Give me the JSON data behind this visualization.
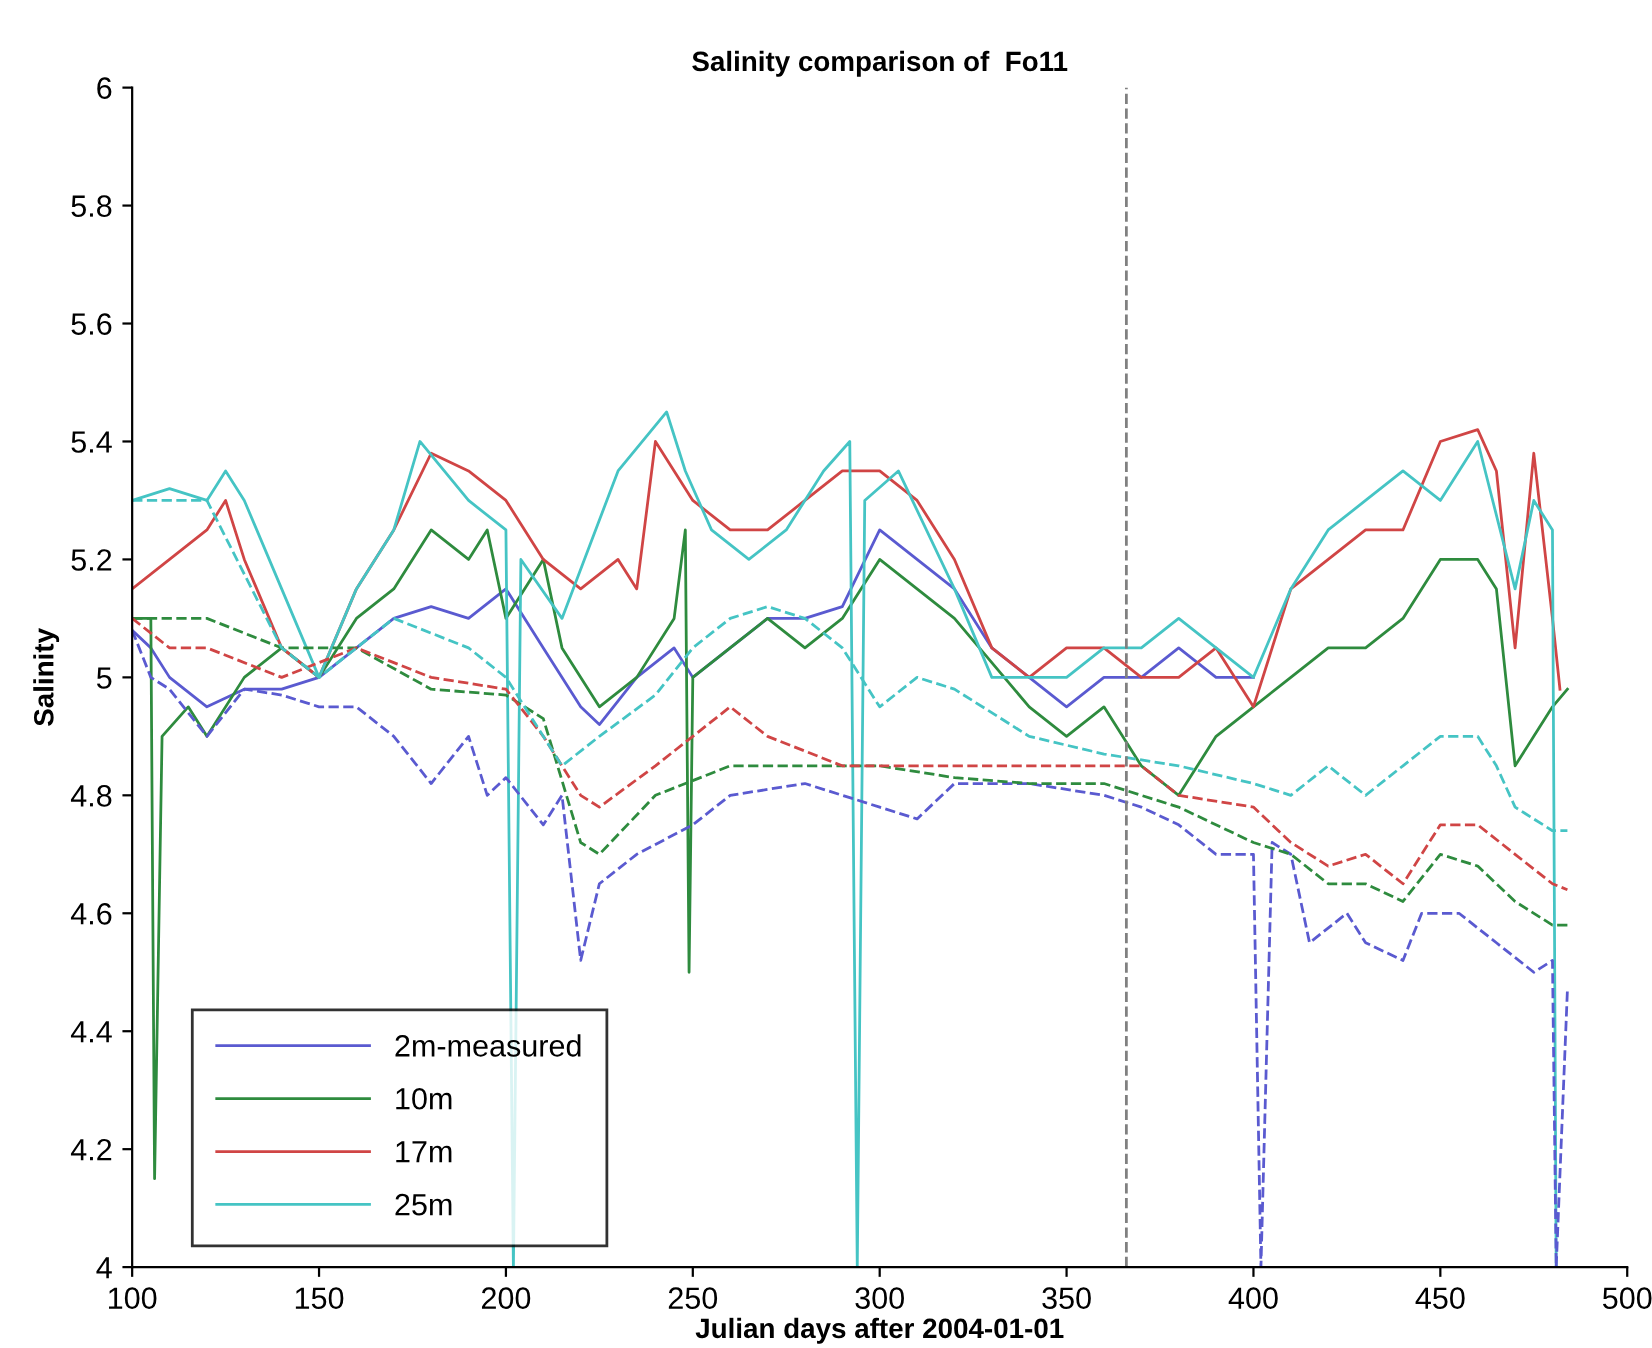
{
  "chart_data": {
    "type": "line",
    "title": "Salinity comparison of  Fo11",
    "xlabel": "Julian days after 2004-01-01",
    "ylabel": "Salinity",
    "xlim": [
      100,
      500
    ],
    "xticks": [
      100,
      150,
      200,
      250,
      300,
      350,
      400,
      450,
      500
    ],
    "ylim": [
      4,
      6
    ],
    "yticks": [
      4,
      4.2,
      4.4,
      4.6,
      4.8,
      5,
      5.2,
      5.4,
      5.6,
      5.8,
      6
    ],
    "grid": false,
    "legend": "bottom left",
    "marker": "none",
    "ref_lines": [
      {
        "axis": "x",
        "value": 366,
        "color": "#808080",
        "line_style": "dashed"
      }
    ],
    "series": [
      {
        "name": "2m-measured",
        "color": "#5a5ad0",
        "line_style": "solid",
        "x": [
          100,
          105,
          110,
          120,
          130,
          140,
          150,
          160,
          170,
          180,
          190,
          200,
          210,
          220,
          225,
          235,
          245,
          250,
          260,
          270,
          280,
          290,
          300,
          310,
          320,
          330,
          340,
          350,
          360,
          370,
          380,
          390,
          400
        ],
        "values": [
          5.08,
          5.05,
          5.0,
          4.95,
          4.98,
          4.98,
          5.0,
          5.05,
          5.1,
          5.12,
          5.1,
          5.15,
          5.05,
          4.95,
          4.92,
          5.0,
          5.05,
          5.0,
          5.05,
          5.1,
          5.1,
          5.12,
          5.25,
          5.2,
          5.15,
          5.05,
          5.0,
          4.95,
          5.0,
          5.0,
          5.05,
          5.0,
          5.0
        ]
      },
      {
        "name": "10m",
        "color": "#2e8b3e",
        "line_style": "solid",
        "x": [
          100,
          105,
          106,
          108,
          115,
          120,
          130,
          140,
          150,
          160,
          170,
          180,
          190,
          195,
          200,
          210,
          215,
          225,
          235,
          245,
          248,
          249,
          250,
          260,
          270,
          280,
          290,
          300,
          320,
          340,
          350,
          360,
          370,
          380,
          390,
          400,
          410,
          420,
          430,
          440,
          450,
          460,
          465,
          470,
          475,
          480,
          484
        ],
        "values": [
          5.1,
          5.1,
          4.15,
          4.9,
          4.95,
          4.9,
          5.0,
          5.05,
          5.0,
          5.1,
          5.15,
          5.25,
          5.2,
          5.25,
          5.1,
          5.2,
          5.05,
          4.95,
          5.0,
          5.1,
          5.25,
          4.5,
          5.0,
          5.05,
          5.1,
          5.05,
          5.1,
          5.2,
          5.1,
          4.95,
          4.9,
          4.95,
          4.85,
          4.8,
          4.9,
          4.95,
          5.0,
          5.05,
          5.05,
          5.1,
          5.2,
          5.2,
          5.15,
          4.85,
          4.9,
          4.95,
          4.98
        ]
      },
      {
        "name": "17m",
        "color": "#d04545",
        "line_style": "solid",
        "x": [
          100,
          110,
          120,
          125,
          130,
          140,
          150,
          160,
          170,
          180,
          190,
          200,
          210,
          220,
          230,
          235,
          240,
          245,
          250,
          260,
          270,
          280,
          290,
          300,
          310,
          320,
          330,
          340,
          350,
          360,
          370,
          380,
          390,
          400,
          410,
          420,
          430,
          440,
          450,
          460,
          465,
          470,
          475,
          480,
          482
        ],
        "values": [
          5.15,
          5.2,
          5.25,
          5.3,
          5.2,
          5.05,
          5.0,
          5.15,
          5.25,
          5.38,
          5.35,
          5.3,
          5.2,
          5.15,
          5.2,
          5.15,
          5.4,
          5.35,
          5.3,
          5.25,
          5.25,
          5.3,
          5.35,
          5.35,
          5.3,
          5.2,
          5.05,
          5.0,
          5.05,
          5.05,
          5.0,
          5.0,
          5.05,
          4.95,
          5.15,
          5.2,
          5.25,
          5.25,
          5.4,
          5.42,
          5.35,
          5.05,
          5.38,
          5.1,
          4.98
        ]
      },
      {
        "name": "25m",
        "color": "#45c4c4",
        "line_style": "solid",
        "x": [
          100,
          110,
          120,
          125,
          130,
          140,
          150,
          160,
          170,
          177,
          190,
          200,
          202,
          204,
          215,
          230,
          243,
          248,
          255,
          265,
          275,
          285,
          292,
          294,
          296,
          305,
          320,
          330,
          340,
          350,
          360,
          370,
          380,
          390,
          400,
          410,
          420,
          430,
          440,
          450,
          460,
          470,
          475,
          480,
          481
        ],
        "values": [
          5.3,
          5.32,
          5.3,
          5.35,
          5.3,
          5.15,
          5.0,
          5.15,
          5.25,
          5.4,
          5.3,
          5.25,
          4.0,
          5.2,
          5.1,
          5.35,
          5.45,
          5.35,
          5.25,
          5.2,
          5.25,
          5.35,
          5.4,
          4.0,
          5.3,
          5.35,
          5.15,
          5.0,
          5.0,
          5.0,
          5.05,
          5.05,
          5.1,
          5.05,
          5.0,
          5.15,
          5.25,
          5.3,
          5.35,
          5.3,
          5.4,
          5.15,
          5.3,
          5.25,
          4.0
        ]
      },
      {
        "color": "#5a5ad0",
        "line_style": "dashed",
        "x": [
          100,
          105,
          110,
          120,
          130,
          140,
          150,
          160,
          170,
          180,
          190,
          195,
          200,
          210,
          215,
          220,
          225,
          235,
          250,
          260,
          280,
          300,
          310,
          320,
          340,
          360,
          370,
          380,
          390,
          400,
          402,
          405,
          410,
          415,
          425,
          430,
          440,
          445,
          455,
          465,
          475,
          480,
          481,
          484
        ],
        "values": [
          5.08,
          5.0,
          4.98,
          4.9,
          4.98,
          4.97,
          4.95,
          4.95,
          4.9,
          4.82,
          4.9,
          4.8,
          4.83,
          4.75,
          4.8,
          4.52,
          4.65,
          4.7,
          4.75,
          4.8,
          4.82,
          4.78,
          4.76,
          4.82,
          4.82,
          4.8,
          4.78,
          4.75,
          4.7,
          4.7,
          4.0,
          4.72,
          4.7,
          4.55,
          4.6,
          4.55,
          4.52,
          4.6,
          4.6,
          4.55,
          4.5,
          4.52,
          4.0,
          4.47
        ]
      },
      {
        "color": "#2e8b3e",
        "line_style": "dashed",
        "x": [
          100,
          110,
          120,
          140,
          160,
          180,
          200,
          210,
          220,
          225,
          240,
          260,
          280,
          300,
          320,
          340,
          360,
          380,
          400,
          410,
          420,
          430,
          440,
          450,
          460,
          470,
          480,
          484
        ],
        "values": [
          5.1,
          5.1,
          5.1,
          5.05,
          5.05,
          4.98,
          4.97,
          4.93,
          4.72,
          4.7,
          4.8,
          4.85,
          4.85,
          4.85,
          4.83,
          4.82,
          4.82,
          4.78,
          4.72,
          4.7,
          4.65,
          4.65,
          4.62,
          4.7,
          4.68,
          4.62,
          4.58,
          4.58
        ]
      },
      {
        "color": "#d04545",
        "line_style": "dashed",
        "x": [
          100,
          110,
          120,
          140,
          160,
          180,
          200,
          210,
          220,
          225,
          240,
          250,
          260,
          270,
          290,
          300,
          320,
          340,
          360,
          370,
          380,
          400,
          410,
          420,
          430,
          440,
          450,
          460,
          470,
          480,
          484
        ],
        "values": [
          5.1,
          5.05,
          5.05,
          5.0,
          5.05,
          5.0,
          4.98,
          4.9,
          4.8,
          4.78,
          4.85,
          4.9,
          4.95,
          4.9,
          4.85,
          4.85,
          4.85,
          4.85,
          4.85,
          4.85,
          4.8,
          4.78,
          4.72,
          4.68,
          4.7,
          4.65,
          4.75,
          4.75,
          4.7,
          4.65,
          4.64
        ]
      },
      {
        "color": "#45c4c4",
        "line_style": "dashed",
        "x": [
          100,
          120,
          140,
          150,
          170,
          190,
          200,
          215,
          225,
          240,
          250,
          260,
          270,
          280,
          290,
          300,
          310,
          320,
          340,
          360,
          380,
          400,
          410,
          420,
          430,
          440,
          450,
          460,
          465,
          470,
          480,
          484
        ],
        "values": [
          5.3,
          5.3,
          5.05,
          5.0,
          5.1,
          5.05,
          5.0,
          4.85,
          4.9,
          4.97,
          5.05,
          5.1,
          5.12,
          5.1,
          5.05,
          4.95,
          5.0,
          4.98,
          4.9,
          4.87,
          4.85,
          4.82,
          4.8,
          4.85,
          4.8,
          4.85,
          4.9,
          4.9,
          4.85,
          4.78,
          4.74,
          4.74
        ]
      }
    ]
  }
}
